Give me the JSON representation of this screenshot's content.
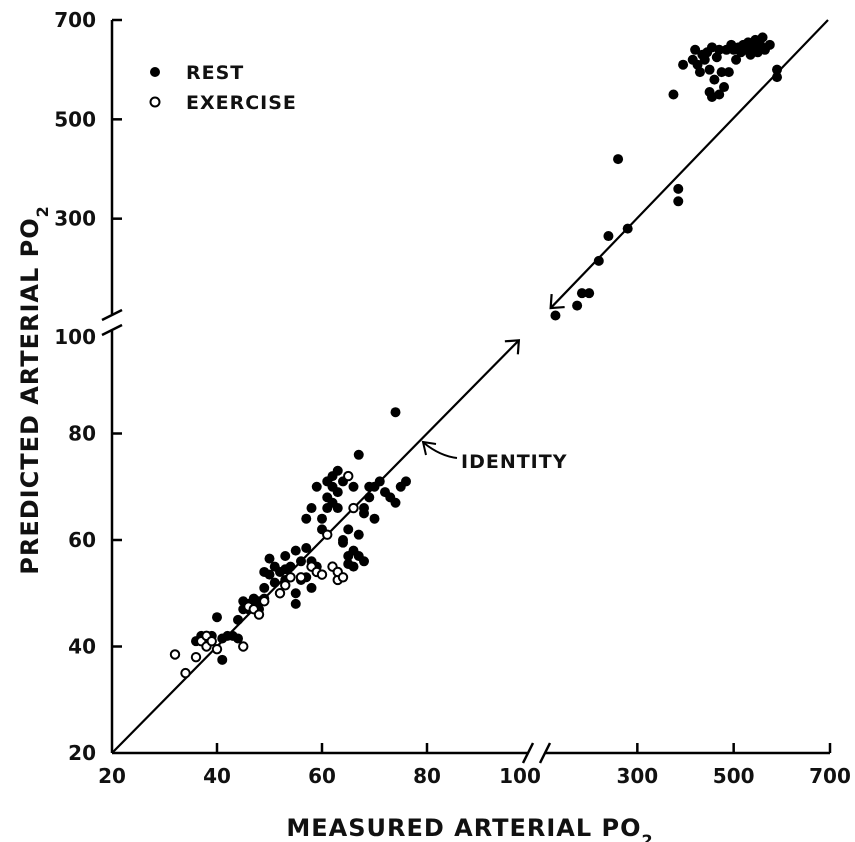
{
  "chart_data": {
    "type": "scatter",
    "title": "",
    "xlabel": "MEASURED ARTERIAL PO",
    "xlabel_sub": "2",
    "ylabel": "PREDICTED ARTERIAL PO",
    "ylabel_sub": "2",
    "x_ticks": [
      "20",
      "40",
      "60",
      "80",
      "100",
      "300",
      "500",
      "700"
    ],
    "y_ticks": [
      "20",
      "40",
      "60",
      "80",
      "100",
      "300",
      "500",
      "700"
    ],
    "x_scale": {
      "type": "broken",
      "lower_range": [
        20,
        100
      ],
      "upper_range": [
        100,
        700
      ]
    },
    "y_scale": {
      "type": "broken",
      "lower_range": [
        20,
        100
      ],
      "upper_range": [
        100,
        700
      ]
    },
    "grid": false,
    "legend_position": "top-left",
    "legend": [
      {
        "label": "REST",
        "marker": "filled-circle"
      },
      {
        "label": "EXERCISE",
        "marker": "open-circle"
      }
    ],
    "annotation": {
      "label": "IDENTITY",
      "describes": "line of identity (y = x)"
    },
    "series": [
      {
        "name": "REST",
        "points": [
          [
            36,
            41
          ],
          [
            37,
            42
          ],
          [
            38,
            41.5
          ],
          [
            39,
            42
          ],
          [
            40,
            45.5
          ],
          [
            41,
            41.5
          ],
          [
            41,
            37.5
          ],
          [
            42,
            42
          ],
          [
            43,
            42
          ],
          [
            44,
            41.5
          ],
          [
            44,
            45
          ],
          [
            45,
            47
          ],
          [
            45,
            48.5
          ],
          [
            46,
            47
          ],
          [
            46,
            48
          ],
          [
            47,
            49
          ],
          [
            47,
            47.5
          ],
          [
            48,
            48.5
          ],
          [
            48,
            47
          ],
          [
            49,
            49
          ],
          [
            49,
            51
          ],
          [
            49,
            54
          ],
          [
            50,
            56.5
          ],
          [
            50,
            53.5
          ],
          [
            51,
            55
          ],
          [
            51,
            52
          ],
          [
            52,
            54
          ],
          [
            52,
            50
          ],
          [
            53,
            57
          ],
          [
            53,
            52.5
          ],
          [
            53,
            54.5
          ],
          [
            54,
            55
          ],
          [
            54,
            53
          ],
          [
            55,
            58
          ],
          [
            55,
            50
          ],
          [
            55,
            48
          ],
          [
            56,
            52.5
          ],
          [
            56,
            56
          ],
          [
            57,
            53
          ],
          [
            57,
            58.5
          ],
          [
            57,
            64
          ],
          [
            58,
            51
          ],
          [
            58,
            56
          ],
          [
            58,
            66
          ],
          [
            59,
            70
          ],
          [
            59,
            55
          ],
          [
            60,
            62
          ],
          [
            60,
            64
          ],
          [
            61,
            68
          ],
          [
            61,
            71
          ],
          [
            61,
            66
          ],
          [
            62,
            70
          ],
          [
            62,
            72
          ],
          [
            62,
            67
          ],
          [
            63,
            73
          ],
          [
            63,
            69
          ],
          [
            63,
            66
          ],
          [
            64,
            71
          ],
          [
            64,
            60
          ],
          [
            64,
            59.5
          ],
          [
            65,
            55.5
          ],
          [
            65,
            57
          ],
          [
            65,
            62
          ],
          [
            66,
            58
          ],
          [
            66,
            55
          ],
          [
            66,
            70
          ],
          [
            67,
            76
          ],
          [
            67,
            57
          ],
          [
            67,
            61
          ],
          [
            68,
            66
          ],
          [
            68,
            56
          ],
          [
            68,
            65
          ],
          [
            69,
            68
          ],
          [
            69,
            70
          ],
          [
            70,
            64
          ],
          [
            70,
            70
          ],
          [
            71,
            71
          ],
          [
            72,
            69
          ],
          [
            73,
            68
          ],
          [
            74,
            67
          ],
          [
            74,
            84
          ],
          [
            75,
            70
          ],
          [
            76,
            71
          ],
          [
            130,
            105
          ],
          [
            175,
            125
          ],
          [
            185,
            150
          ],
          [
            200,
            150
          ],
          [
            220,
            215
          ],
          [
            240,
            265
          ],
          [
            260,
            420
          ],
          [
            280,
            280
          ],
          [
            375,
            550
          ],
          [
            385,
            360
          ],
          [
            385,
            335
          ],
          [
            395,
            610
          ],
          [
            415,
            620
          ],
          [
            420,
            640
          ],
          [
            425,
            610
          ],
          [
            430,
            595
          ],
          [
            435,
            630
          ],
          [
            440,
            620
          ],
          [
            445,
            635
          ],
          [
            450,
            600
          ],
          [
            450,
            555
          ],
          [
            455,
            645
          ],
          [
            455,
            545
          ],
          [
            460,
            580
          ],
          [
            465,
            625
          ],
          [
            470,
            550
          ],
          [
            470,
            640
          ],
          [
            475,
            595
          ],
          [
            480,
            565
          ],
          [
            485,
            640
          ],
          [
            490,
            595
          ],
          [
            495,
            650
          ],
          [
            500,
            640
          ],
          [
            505,
            620
          ],
          [
            510,
            645
          ],
          [
            515,
            635
          ],
          [
            520,
            650
          ],
          [
            525,
            640
          ],
          [
            530,
            655
          ],
          [
            535,
            630
          ],
          [
            540,
            645
          ],
          [
            545,
            660
          ],
          [
            550,
            635
          ],
          [
            555,
            650
          ],
          [
            560,
            665
          ],
          [
            565,
            640
          ],
          [
            575,
            650
          ],
          [
            590,
            600
          ],
          [
            590,
            585
          ]
        ]
      },
      {
        "name": "EXERCISE",
        "points": [
          [
            32,
            38.5
          ],
          [
            34,
            35
          ],
          [
            36,
            38
          ],
          [
            37,
            41
          ],
          [
            38,
            40
          ],
          [
            38,
            42
          ],
          [
            39,
            41
          ],
          [
            40,
            39.5
          ],
          [
            45,
            40
          ],
          [
            46,
            47.5
          ],
          [
            47,
            47
          ],
          [
            48,
            46
          ],
          [
            49,
            48.5
          ],
          [
            52,
            50
          ],
          [
            53,
            51.5
          ],
          [
            54,
            53
          ],
          [
            56,
            53
          ],
          [
            58,
            55
          ],
          [
            59,
            54
          ],
          [
            60,
            53.5
          ],
          [
            61,
            61
          ],
          [
            62,
            55
          ],
          [
            63,
            52.5
          ],
          [
            63,
            54
          ],
          [
            64,
            53
          ],
          [
            65,
            72
          ],
          [
            66,
            66
          ]
        ]
      }
    ]
  }
}
